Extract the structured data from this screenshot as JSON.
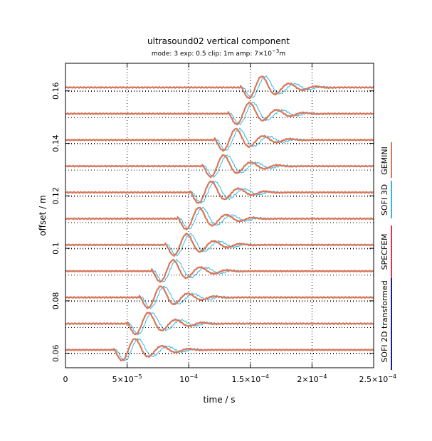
{
  "chart_data": {
    "type": "line",
    "title": "ultrasound02 vertical component",
    "subtitle": {
      "mode": "mode: 3",
      "exp": "exp: 0.5",
      "clip": "clip: 1m",
      "amp_prefix": "amp: 7×10",
      "amp_exp": "−3",
      "amp_unit": "m"
    },
    "xlabel": "time / s",
    "ylabel": "offset / m",
    "xlim": [
      0,
      0.00025
    ],
    "ylim": [
      0.0545,
      0.1705
    ],
    "x_ticks": [
      {
        "value": 0,
        "mant": "0",
        "exp": ""
      },
      {
        "value": 5e-05,
        "mant": "5×10",
        "exp": "−5"
      },
      {
        "value": 0.0001,
        "mant": "10",
        "exp": "−4"
      },
      {
        "value": 0.00015,
        "mant": "1.5×10",
        "exp": "−4"
      },
      {
        "value": 0.0002,
        "mant": "2×10",
        "exp": "−4"
      },
      {
        "value": 0.00025,
        "mant": "2.5×10",
        "exp": "−4"
      }
    ],
    "y_ticks": [
      {
        "value": 0.06,
        "label": "0.06"
      },
      {
        "value": 0.08,
        "label": "0.08"
      },
      {
        "value": 0.1,
        "label": "0.1"
      },
      {
        "value": 0.12,
        "label": "0.12"
      },
      {
        "value": 0.14,
        "label": "0.14"
      },
      {
        "value": 0.16,
        "label": "0.16"
      }
    ],
    "grid": "dotted",
    "legend_position": "right, vertical",
    "traces": {
      "baselines": [
        0.0613,
        0.0713,
        0.0813,
        0.0913,
        0.1013,
        0.1113,
        0.1213,
        0.1313,
        0.1413,
        0.1513,
        0.1613
      ],
      "onset_times": [
        5.1e-05,
        6.2e-05,
        7.2e-05,
        8.2e-05,
        9.3e-05,
        0.000103,
        0.000113,
        0.000123,
        0.000133,
        0.000144,
        0.000154
      ]
    },
    "series": [
      {
        "name": "SOFI 2D transformed",
        "color": "#1a1aa0"
      },
      {
        "name": "SPECFEM",
        "color": "#e8324b"
      },
      {
        "name": "SOFI 3D",
        "color": "#33b8e6"
      },
      {
        "name": "GEMINI",
        "color": "#d9775a"
      }
    ]
  }
}
